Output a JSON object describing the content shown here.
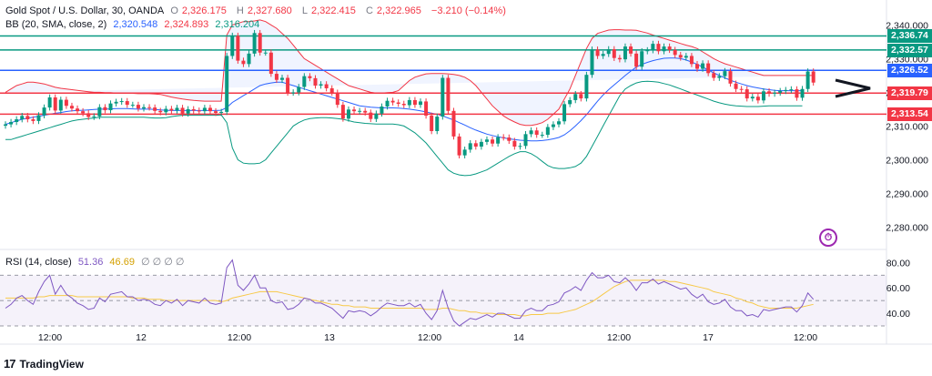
{
  "legend": {
    "title": "Gold Spot / U.S. Dollar, 30, OANDA",
    "o_label": "O",
    "o_value": "2,326.175",
    "h_label": "H",
    "h_value": "2,327.680",
    "l_label": "L",
    "l_value": "2,322.415",
    "c_label": "C",
    "c_value": "2,322.965",
    "change": "−3.210 (−0.14%)",
    "bb_label": "BB (20, SMA, close, 2)",
    "bb_basis": "2,320.548",
    "bb_upper": "2,324.893",
    "bb_lower": "2,316.204",
    "rsi_label": "RSI (14, close)",
    "rsi_value": "51.36",
    "rsi_ma": "46.69",
    "rsi_zeros": "∅ ∅ ∅ ∅"
  },
  "price_tags": [
    {
      "text": "2,336.74",
      "color": "#089981"
    },
    {
      "text": "2,332.57",
      "color": "#089981"
    },
    {
      "text": "2,326.52",
      "color": "#2962ff"
    },
    {
      "text": "2,319.79",
      "color": "#f23645"
    },
    {
      "text": "2,313.54",
      "color": "#f23645"
    }
  ],
  "brand": {
    "name": "TradingView",
    "mark": "17"
  },
  "colors": {
    "up": "#089981",
    "down": "#f23645",
    "bb_upper": "#f23645",
    "bb_lower": "#089981",
    "bb_basis": "#2962ff",
    "rsi": "#7e57c2",
    "rsi_ma": "#f7c948"
  },
  "chart_data": [
    {
      "type": "candlestick",
      "title": "Gold Spot / U.S. Dollar, 30, OANDA",
      "x_ticks": [
        "12:00",
        "12",
        "12:00",
        "13",
        "12:00",
        "14",
        "12:00",
        "17",
        "12:00"
      ],
      "y_ticks": [
        2280,
        2290,
        2300,
        2310,
        2320,
        2330,
        2340
      ],
      "ylim": [
        2275,
        2342
      ],
      "horizontal_levels": [
        {
          "value": 2336.74,
          "color": "#089981"
        },
        {
          "value": 2332.57,
          "color": "#089981"
        },
        {
          "value": 2326.52,
          "color": "#2962ff"
        },
        {
          "value": 2319.79,
          "color": "#f23645"
        },
        {
          "value": 2313.54,
          "color": "#f23645"
        }
      ],
      "close": [
        2310.5,
        2311.2,
        2312.0,
        2313.0,
        2312.0,
        2311.5,
        2313.2,
        2315.5,
        2318.5,
        2314.6,
        2317.8,
        2316.0,
        2315.2,
        2314.4,
        2313.8,
        2312.7,
        2312.9,
        2315.6,
        2314.7,
        2316.7,
        2317.2,
        2317.4,
        2316.3,
        2316.3,
        2315.2,
        2315.6,
        2315.5,
        2314.5,
        2314.1,
        2315.1,
        2314.6,
        2315.4,
        2313.7,
        2315.0,
        2314.6,
        2314.4,
        2315.4,
        2314.4,
        2313.9,
        2314.2,
        2330.8,
        2336.8,
        2329.4,
        2328.4,
        2331.5,
        2337.6,
        2331.8,
        2331.8,
        2325.5,
        2323.7,
        2324.3,
        2319.9,
        2320.0,
        2321.6,
        2324.8,
        2324.2,
        2322.0,
        2322.4,
        2321.2,
        2319.9,
        2316.3,
        2312.2,
        2314.9,
        2314.4,
        2314.5,
        2314.0,
        2312.1,
        2313.7,
        2315.8,
        2317.5,
        2317.0,
        2316.6,
        2316.2,
        2317.7,
        2316.3,
        2317.3,
        2313.1,
        2308.5,
        2312.8,
        2324.3,
        2314.5,
        2306.9,
        2301.3,
        2303.0,
        2304.9,
        2303.9,
        2305.3,
        2306.0,
        2304.8,
        2306.7,
        2306.6,
        2305.6,
        2303.9,
        2304.1,
        2307.6,
        2308.7,
        2307.4,
        2307.4,
        2309.7,
        2310.5,
        2311.4,
        2316.5,
        2317.7,
        2319.5,
        2318.2,
        2325.2,
        2332.7,
        2330.8,
        2331.4,
        2332.8,
        2330.2,
        2329.8,
        2333.6,
        2331.5,
        2327.6,
        2332.2,
        2332.5,
        2334.4,
        2332.2,
        2333.6,
        2332.6,
        2331.1,
        2330.3,
        2330.8,
        2328.4,
        2327.0,
        2328.6,
        2325.7,
        2324.3,
        2324.8,
        2326.3,
        2322.6,
        2321.0,
        2320.9,
        2318.2,
        2318.7,
        2317.6,
        2320.3,
        2319.6,
        2319.9,
        2320.4,
        2320.7,
        2320.9,
        2318.4,
        2321.0,
        2326.2,
        2322.9
      ],
      "bb_upper": [
        2320.0,
        2321.0,
        2322.0,
        2322.5,
        2323.0,
        2323.0,
        2322.8,
        2322.5,
        2322.0,
        2321.5,
        2321.2,
        2321.0,
        2320.8,
        2320.6,
        2320.4,
        2320.2,
        2320.0,
        2320.0,
        2319.9,
        2319.9,
        2319.8,
        2319.8,
        2319.7,
        2319.7,
        2319.6,
        2319.6,
        2319.6,
        2319.5,
        2319.4,
        2319.0,
        2318.6,
        2318.3,
        2318.0,
        2317.8,
        2317.6,
        2317.5,
        2317.4,
        2317.4,
        2317.4,
        2317.4,
        2337.0,
        2340.0,
        2340.5,
        2341.0,
        2341.0,
        2341.2,
        2341.5,
        2341.0,
        2340.0,
        2339.0,
        2337.5,
        2336.0,
        2334.0,
        2332.0,
        2330.0,
        2329.0,
        2328.0,
        2327.0,
        2326.0,
        2325.0,
        2324.0,
        2323.0,
        2322.0,
        2321.5,
        2321.0,
        2320.5,
        2320.0,
        2319.8,
        2319.8,
        2319.9,
        2320.0,
        2320.5,
        2322.0,
        2323.5,
        2324.5,
        2325.0,
        2325.5,
        2325.6,
        2325.6,
        2325.6,
        2325.5,
        2325.3,
        2325.0,
        2324.5,
        2323.5,
        2322.0,
        2320.0,
        2318.0,
        2316.0,
        2314.5,
        2313.0,
        2312.0,
        2311.2,
        2310.5,
        2310.2,
        2310.2,
        2310.5,
        2311.0,
        2312.0,
        2313.5,
        2315.0,
        2318.0,
        2321.0,
        2325.0,
        2329.0,
        2333.0,
        2336.0,
        2337.5,
        2338.0,
        2338.5,
        2338.6,
        2338.6,
        2338.5,
        2338.5,
        2338.4,
        2338.0,
        2337.6,
        2337.0,
        2336.5,
        2336.0,
        2335.5,
        2335.0,
        2334.5,
        2334.0,
        2333.6,
        2333.0,
        2332.0,
        2331.0,
        2330.0,
        2329.2,
        2328.5,
        2328.0,
        2327.5,
        2327.0,
        2326.5,
        2326.0,
        2325.5,
        2325.0,
        2325.0,
        2325.0,
        2325.0,
        2325.0,
        2325.0,
        2325.0,
        2325.0,
        2325.0,
        2325.0
      ],
      "bb_basis": [
        2310.5,
        2311.0,
        2311.5,
        2312.0,
        2312.3,
        2312.6,
        2312.9,
        2313.2,
        2313.5,
        2313.8,
        2314.0,
        2314.3,
        2314.5,
        2314.6,
        2314.7,
        2314.8,
        2314.9,
        2315.0,
        2315.0,
        2315.1,
        2315.2,
        2315.2,
        2315.2,
        2315.1,
        2315.0,
        2315.0,
        2315.0,
        2314.9,
        2314.8,
        2314.7,
        2314.6,
        2314.6,
        2314.6,
        2314.6,
        2314.6,
        2314.6,
        2314.6,
        2314.6,
        2314.6,
        2314.7,
        2315.5,
        2317.0,
        2318.0,
        2319.0,
        2320.0,
        2321.0,
        2322.0,
        2322.5,
        2322.8,
        2323.0,
        2323.0,
        2322.5,
        2322.0,
        2321.5,
        2321.0,
        2320.5,
        2320.0,
        2319.5,
        2319.0,
        2318.5,
        2318.0,
        2317.5,
        2317.0,
        2316.5,
        2316.0,
        2315.8,
        2315.6,
        2315.5,
        2315.4,
        2315.4,
        2315.4,
        2315.3,
        2315.2,
        2315.0,
        2314.8,
        2314.5,
        2314.2,
        2313.8,
        2313.5,
        2313.0,
        2312.4,
        2311.8,
        2311.0,
        2310.3,
        2309.5,
        2308.8,
        2308.2,
        2307.6,
        2307.2,
        2306.8,
        2306.5,
        2306.2,
        2306.0,
        2305.8,
        2305.7,
        2305.6,
        2305.6,
        2305.7,
        2305.9,
        2306.2,
        2306.6,
        2307.4,
        2308.6,
        2310.0,
        2311.6,
        2313.4,
        2315.4,
        2317.4,
        2319.2,
        2320.8,
        2322.2,
        2323.6,
        2325.0,
        2326.3,
        2327.5,
        2328.3,
        2328.9,
        2329.4,
        2329.8,
        2330.1,
        2330.2,
        2330.2,
        2330.0,
        2329.6,
        2329.0,
        2328.3,
        2327.5,
        2326.6,
        2325.8,
        2325.0,
        2324.3,
        2323.6,
        2323.0,
        2322.5,
        2322.0,
        2321.6,
        2321.3,
        2321.0,
        2320.8,
        2320.6,
        2320.5,
        2320.5,
        2320.5,
        2320.5,
        2320.5
      ],
      "bb_lower": [
        2306.0,
        2306.0,
        2306.5,
        2307.0,
        2307.5,
        2308.0,
        2308.5,
        2309.0,
        2309.5,
        2310.0,
        2310.5,
        2311.0,
        2311.5,
        2311.8,
        2312.0,
        2312.2,
        2312.4,
        2312.6,
        2312.6,
        2312.6,
        2312.6,
        2312.6,
        2312.6,
        2312.6,
        2312.6,
        2312.6,
        2312.5,
        2312.4,
        2312.4,
        2312.5,
        2312.8,
        2313.0,
        2313.2,
        2313.2,
        2313.2,
        2313.2,
        2313.2,
        2313.2,
        2313.2,
        2313.3,
        2311.0,
        2303.5,
        2300.0,
        2299.0,
        2298.8,
        2298.8,
        2299.0,
        2300.0,
        2302.0,
        2304.0,
        2306.0,
        2308.0,
        2310.0,
        2311.0,
        2311.8,
        2312.2,
        2312.4,
        2312.5,
        2312.5,
        2312.4,
        2312.2,
        2312.0,
        2311.6,
        2311.2,
        2311.0,
        2310.8,
        2310.7,
        2310.6,
        2310.6,
        2310.6,
        2310.6,
        2310.4,
        2310.0,
        2309.0,
        2308.0,
        2306.5,
        2305.0,
        2303.0,
        2301.0,
        2299.0,
        2297.0,
        2296.0,
        2295.5,
        2295.3,
        2295.4,
        2295.8,
        2296.4,
        2297.0,
        2298.0,
        2299.0,
        2300.0,
        2301.0,
        2301.8,
        2302.4,
        2302.4,
        2301.8,
        2300.8,
        2299.5,
        2298.3,
        2297.6,
        2297.4,
        2297.4,
        2297.6,
        2298.0,
        2299.0,
        2301.0,
        2304.0,
        2307.0,
        2310.0,
        2313.0,
        2316.0,
        2319.0,
        2321.0,
        2322.0,
        2322.8,
        2323.2,
        2323.3,
        2323.2,
        2323.0,
        2322.6,
        2322.2,
        2321.6,
        2321.0,
        2320.4,
        2319.8,
        2319.2,
        2318.6,
        2318.0,
        2317.4,
        2316.9,
        2316.5,
        2316.2,
        2316.0,
        2315.9,
        2315.8,
        2315.8,
        2315.8,
        2315.9,
        2316.0,
        2316.0,
        2316.0,
        2316.0,
        2316.0,
        2316.0,
        2316.0
      ]
    },
    {
      "type": "line",
      "title": "RSI (14, close)",
      "ylim": [
        30,
        86
      ],
      "y_ticks": [
        40,
        60,
        80
      ],
      "band": [
        30,
        70
      ],
      "rsi": [
        44,
        47,
        52,
        54,
        50,
        47,
        57,
        65,
        70,
        55,
        62,
        55,
        52,
        48,
        46,
        43,
        44,
        52,
        49,
        55,
        56,
        57,
        53,
        53,
        50,
        51,
        50,
        47,
        46,
        50,
        48,
        51,
        46,
        50,
        49,
        48,
        52,
        48,
        47,
        48,
        76,
        82,
        62,
        58,
        63,
        70,
        60,
        60,
        50,
        48,
        49,
        43,
        44,
        47,
        52,
        51,
        48,
        48,
        46,
        44,
        40,
        36,
        42,
        41,
        42,
        41,
        38,
        41,
        45,
        48,
        47,
        46,
        46,
        48,
        45,
        47,
        40,
        35,
        42,
        58,
        44,
        34,
        30,
        33,
        36,
        35,
        37,
        39,
        37,
        40,
        40,
        38,
        36,
        36,
        42,
        44,
        42,
        42,
        46,
        47,
        49,
        56,
        58,
        61,
        58,
        66,
        72,
        68,
        68,
        70,
        65,
        64,
        68,
        64,
        58,
        64,
        64,
        67,
        63,
        65,
        63,
        61,
        59,
        60,
        55,
        52,
        55,
        49,
        47,
        48,
        51,
        45,
        42,
        42,
        38,
        39,
        37,
        43,
        42,
        43,
        44,
        45,
        45,
        41,
        46,
        56,
        51
      ],
      "rsi_ma": [
        52,
        52,
        52,
        52,
        52,
        52,
        53,
        53,
        54,
        54,
        54,
        54,
        54,
        53,
        53,
        53,
        53,
        53,
        53,
        53,
        53,
        53,
        53,
        52,
        52,
        52,
        51,
        51,
        51,
        50,
        50,
        50,
        50,
        50,
        50,
        50,
        50,
        50,
        50,
        49,
        50,
        52,
        53,
        54,
        55,
        56,
        57,
        57,
        57,
        57,
        56,
        55,
        54,
        53,
        52,
        51,
        50,
        49,
        48,
        47,
        47,
        46,
        46,
        45,
        45,
        45,
        44,
        44,
        44,
        44,
        44,
        44,
        44,
        44,
        44,
        44,
        43,
        43,
        43,
        44,
        44,
        43,
        42,
        42,
        41,
        41,
        40,
        40,
        40,
        39,
        39,
        39,
        39,
        38,
        38,
        39,
        39,
        39,
        40,
        40,
        40,
        41,
        42,
        43,
        45,
        47,
        49,
        52,
        55,
        58,
        61,
        63,
        65,
        66,
        66,
        66,
        66,
        66,
        66,
        66,
        65,
        65,
        64,
        63,
        62,
        61,
        60,
        59,
        57,
        56,
        55,
        54,
        52,
        51,
        49,
        48,
        46,
        45,
        44,
        44,
        44,
        44,
        44,
        44,
        45,
        46,
        47
      ]
    }
  ]
}
